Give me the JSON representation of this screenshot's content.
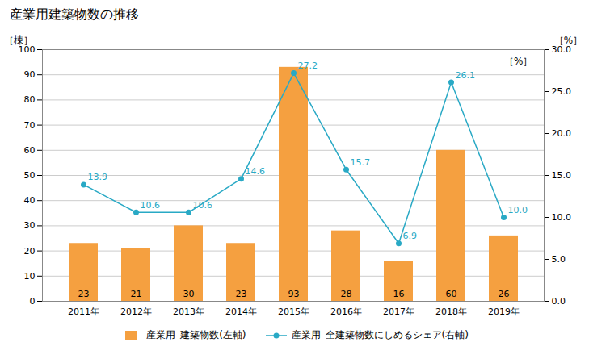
{
  "chart_data": {
    "type": "bar",
    "title": "産業用建築物数の推移",
    "categories": [
      "2011年",
      "2012年",
      "2013年",
      "2014年",
      "2015年",
      "2016年",
      "2017年",
      "2018年",
      "2019年"
    ],
    "series": [
      {
        "name": "産業用_建築物数(左軸)",
        "type": "bar",
        "color": "#f5a040",
        "values": [
          23,
          21,
          30,
          23,
          93,
          28,
          16,
          60,
          26
        ]
      },
      {
        "name": "産業用_全建築物数にしめるシェア(右軸)",
        "type": "line",
        "axis": "y2",
        "color": "#29a9c5",
        "marker": "circle",
        "values": [
          13.9,
          10.6,
          10.6,
          14.6,
          27.2,
          15.7,
          6.9,
          26.1,
          10.0
        ],
        "value_labels": [
          "13.9",
          "10.6",
          "10.6",
          "14.6",
          "27.2",
          "15.7",
          "6.9",
          "26.1",
          "10.0"
        ]
      }
    ],
    "ylabel": "［棟］",
    "y2label": "［%］",
    "annotations": [
      "［%］"
    ],
    "ylim": [
      0,
      100
    ],
    "yticks": [
      0,
      10,
      20,
      30,
      40,
      50,
      60,
      70,
      80,
      90,
      100
    ],
    "y2lim": [
      0,
      30.0
    ],
    "y2ticks": [
      {
        "value": 0.0,
        "label": "0.0"
      },
      {
        "value": 5.0,
        "label": "5.0"
      },
      {
        "value": 10.0,
        "label": "10.0"
      },
      {
        "value": 15.0,
        "label": "15.0"
      },
      {
        "value": 20.0,
        "label": "20.0"
      },
      {
        "value": 25.0,
        "label": "25.0"
      },
      {
        "value": 30.0,
        "label": "30.0"
      }
    ],
    "grid": true,
    "data_labels": true,
    "legend": "bottom"
  }
}
